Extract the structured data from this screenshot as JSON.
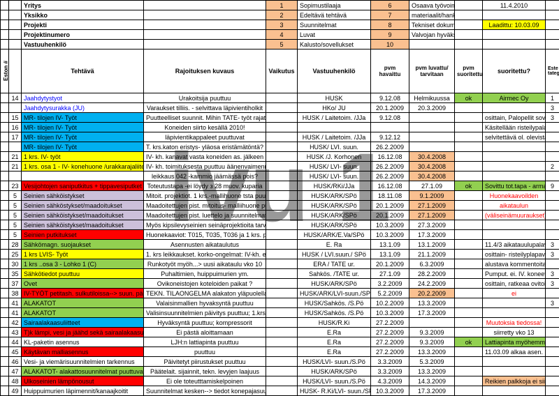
{
  "watermark": "ivu 1",
  "top": {
    "labels": [
      "Yritys",
      "Yksikko",
      "Projekti",
      "Projektinumero",
      "Vastuuhenkilö"
    ],
    "legend": [
      {
        "n": "1",
        "txt": "Sopimustilaaja",
        "bg": "#fac090"
      },
      {
        "n": "2",
        "txt": "Edeltävä tehtävä",
        "bg": "#fac090"
      },
      {
        "n": "3",
        "txt": "Suunnitelmat",
        "bg": "#fac090"
      },
      {
        "n": "4",
        "txt": "Luvat",
        "bg": "#fac090"
      },
      {
        "n": "5",
        "txt": "Kalusto/sovellukset",
        "bg": "#fac090"
      }
    ],
    "legend2": [
      {
        "n": "6",
        "txt": "Osaava työvoima",
        "bg": "#fac090"
      },
      {
        "n": "7",
        "txt": "materiaalit/hankinnat",
        "bg": "#fac090"
      },
      {
        "n": "8",
        "txt": "Tekniset dokumentit",
        "bg": "#fac090"
      },
      {
        "n": "9",
        "txt": "Valvojan hyväksyntä",
        "bg": "#fac090"
      },
      {
        "n": "10",
        "txt": "",
        "bg": "#fac090"
      }
    ],
    "date": "11.4.2010",
    "laadittu": "Laadittu:  10.03.09",
    "laadittu_bg": "#ffff00"
  },
  "headers": {
    "eston": "Eston #",
    "tehtava": "Tehtävä",
    "rajo": "Rajoituksen kuvaus",
    "vaik": "Vaikutus",
    "vastuu": "Vastuuhenkilö",
    "pvm1": "pvm havaittu",
    "pvm2": "pvm luvattu/ tarvitaan",
    "pvm3": "pvm suoritettu",
    "suor": "suoritettu?",
    "cat": "Este tategoria"
  },
  "colors": {
    "blue": "#00b0f0",
    "yellow": "#ffff00",
    "red": "#ff0000",
    "violet": "#ccc0da",
    "green": "#92d050",
    "pink": "#f4b183",
    "orange": "#fac090",
    "peach": "#ffcc99",
    "lightgreen": "#c4d79b"
  },
  "rows": [
    {
      "n": "14",
      "t": "Jaahdytystyot",
      "tc": "#0000ff",
      "r": "Urakoitsija puuttuu",
      "v": "HUSK",
      "p1": "9.12.08",
      "p2": "Helmikuussa",
      "ok": "ok",
      "s": "Airmec Oy",
      "sbg": "#92d050",
      "c": "1"
    },
    {
      "n": "",
      "t": "Jaahdytysurakka (JU)",
      "tc": "#0000ff",
      "r": "Varaukset tilliis. - selvittava läpivientiholkit",
      "v": "HKo/ JU",
      "p1": "20.1.2009",
      "p2": "20.3.2009",
      "ok": "",
      "s": "",
      "c": "3"
    },
    {
      "n": "15",
      "t": "MR- tilojen IV- Työt",
      "tbg": "#00b0f0",
      "r": "Puutteelliset suunnit. Mihin TATE- työt rajataan?",
      "v": "HUSK / Laitetoim. /JJa",
      "p1": "9.12.08",
      "p2": "",
      "ok": "",
      "s": "osittain, Palopellit sovittu",
      "c": "3"
    },
    {
      "n": "16",
      "t": "MR- tilojen IV- Työt",
      "tbg": "#00b0f0",
      "r": "Koneiden siirto kesällä 2010!",
      "v": "",
      "p1": "",
      "p2": "",
      "ok": "",
      "s": "Käsitellään risteilypalaverissa erikseen",
      "smerge": true,
      "c": ""
    },
    {
      "n": "17",
      "t": "MR- tilojen IV- Työt",
      "tbg": "#00b0f0",
      "r": "läpivientikappaleet puuttuvat",
      "v": "HUSK / Laitetoim. /JJa",
      "p1": "9.12.12",
      "p2": "",
      "ok": "",
      "s": "selvitettävä ol. olevista tiloisa",
      "c": ""
    },
    {
      "n": "",
      "t": "MR- tilojen IV- Työt",
      "tbg": "#00b0f0",
      "r": "T. krs.katon eristys- yläosa eristämätöntä?",
      "v": "HUSK/ LVI. suun.",
      "p1": "26.2.2009",
      "p2": "",
      "ok": "",
      "s": "",
      "c": ""
    },
    {
      "n": "21",
      "t": "1 krs. IV- työt",
      "tbg": "#ffff00",
      "r": "IV- kh. kanavat vasta koneiden as. jälkeen",
      "v": "HUSK /J. Korhonen",
      "p1": "16.12.08",
      "p2": "30.4.2008",
      "p2bg": "#fac090",
      "ok": "",
      "s": "",
      "c": ""
    },
    {
      "n": "21",
      "t": "1 krs. osa 1 - IV- konehuone /urakkarajaliite",
      "tbg": "#ffff00",
      "r": "IV- kh. toimituksesta puuttuu äänenvaimennin -",
      "v": "HUSK/ LVI- suun.",
      "p1": "26.2.2009",
      "p2": "30.4.2008",
      "p2bg": "#fac090",
      "ok": "",
      "s": "",
      "c": "2"
    },
    {
      "n": "",
      "t": "",
      "r": "leikkaus 042 -kammio jäämässä pois?",
      "v": "HUSK/ LVI- suun.",
      "p1": "26.2.2009",
      "p2": "30.4.2008",
      "p2bg": "#fac090",
      "ok": "",
      "s": "",
      "c": ""
    },
    {
      "n": "23",
      "t": "Vesijohtojen saniputkitus + tippavesiputket",
      "tbg": "#ff0000",
      "r": "Toteutustapa -ei löydy з 28 muov. kuparia",
      "v": "HUSK/RKi/JJa",
      "p1": "16.12.08",
      "p2": "27.1.09",
      "ok": "ok",
      "s": "Sovittu tot.tapa - armaflex",
      "sbg": "#92d050",
      "c": "9"
    },
    {
      "n": "5",
      "t": "Seinien sähköistykset",
      "tbg": "#ccc0da",
      "r": "Mitoit. projektiot. 1 krs.-mallihuone tsta puuttuu",
      "v": "HUSK/ARK/SPö",
      "p1": "18.11.08",
      "p2": "9.1.2009",
      "p2bg": "#fac090",
      "ok": "",
      "s": "Huonekaavoilden",
      "sfg": "#ff0000",
      "c": ""
    },
    {
      "n": "5",
      "t": "Seinien sähköstykset/maadoitukset",
      "tbg": "#ccc0da",
      "r": "Maadoitettujen pist. mitoitus- malliihuone puuttuu",
      "v": "HUSK/ARK/SPö",
      "p1": "20.1.2009",
      "p2": "27.1.2009",
      "p2bg": "#fac090",
      "ok": "",
      "s": "aikataulun",
      "sfg": "#ff0000",
      "c": ""
    },
    {
      "n": "5",
      "t": "Seinien sähköistykset/maadoitukset",
      "tbg": "#ccc0da",
      "r": "Maadoitettujen pist. luettelo ja suunnitelmat riitäriidassa",
      "v": "HUSK/ARK/SPö",
      "p1": "20.1.2009",
      "p2": "27.1.2009",
      "p2bg": "#fac090",
      "ok": "",
      "s": "(väliseinämuuraukset) mukaesti - os. myöhässä",
      "sfg": "#ff0000",
      "c": ""
    },
    {
      "n": "5",
      "t": "Seinien sähköistykset/maadoitukset",
      "tbg": "#ccc0da",
      "r": "Myös kipsilevyseinien seinäprojektioita tarvitaan",
      "v": "HUSK/ARK/SPö",
      "p1": "10.3.2009",
      "p2": "27.3.2009",
      "ok": "",
      "s": "",
      "c": ""
    },
    {
      "n": "5",
      "t": "Seinien putkitukset",
      "tbg": "#ff0000",
      "r": "Huonekaaviot: T015, T035, T036 ja 1 krs. puuttuvat",
      "v": "HUSK/ARK/E.Va/SPö",
      "p1": "10.3.2009",
      "p2": "17.3.2009",
      "ok": "",
      "s": "",
      "c": ""
    },
    {
      "n": "28",
      "t": "Sähkömagn. suojaukset",
      "tbg": "#92d050",
      "r": "Asennusten aikataulutus",
      "v": "E. Ra",
      "p1": "13.1.09",
      "p2": "13.1.2009",
      "ok": "",
      "s": "11.4/3 aikatauulupalaveri",
      "c": "3"
    },
    {
      "n": "25",
      "t": "1 krs LVIS- Työt",
      "tbg": "#ffff00",
      "r": "1. krs leikkaukset. korko-ongelmat: IV-kh. edusta ym.",
      "v": "HUSK / LVI.suun./ SPö",
      "p1": "13.1.09",
      "p2": "21.1.2009",
      "ok": "",
      "s": "osittain- risteilyplapaverit",
      "c": "3"
    },
    {
      "n": "30",
      "t": "1 krs ..osa 3 - Lohko 1 (C)",
      "tbg": "#92d050",
      "r": "Runkotyöt myöh...> uusi aikataulu vko 10",
      "v": "ERA / TATE ur.",
      "p1": "20.1.2009",
      "p2": "6.3.2009",
      "ok": "",
      "s": "alustava kommentoitavana",
      "c": ""
    },
    {
      "n": "35",
      "t": "Sähkötiedot puuttuu",
      "tbg": "#ffff00",
      "r": "Puhaltimien, huippuimurien ym.",
      "v": "Sahkös. /TATE ur.",
      "p1": "27.1.09",
      "p2": "28.2.2009",
      "ok": "",
      "s": "Pumput. ei. IV. koneet pääosin",
      "c": "3"
    },
    {
      "n": "37",
      "t": "Ovet",
      "tbg": "#92d050",
      "r": "Ovikoneistojen koteloiden paikat ?",
      "v": "HUSK/ARK/SPö",
      "p1": "3.2.2009",
      "p2": "24.2.2009",
      "ok": "",
      "s": "osittain, ratkeaa ovitoimit.",
      "c": "3"
    },
    {
      "n": "38",
      "t": "IV-TYÖT petitash. sulkutiloissa--> suun. päivitys",
      "tbg": "#ff0000",
      "r": "TEKN. TILAONGELMA alakaton yläpuolella",
      "v": "HUSK/ARK/LVI-suun./SPö",
      "p1": "5.2.2009",
      "p2": "20.2.2009",
      "p2bg": "#fac090",
      "ok": "",
      "s": "ei",
      "sfg": "#ff0000",
      "c": ""
    },
    {
      "n": "41",
      "t": "ALAKATOT",
      "tbg": "#92d050",
      "r": "Valaisinmallien hyvaksyntä puuttuu",
      "v": "HUSK/Sahkös. /S.Pö",
      "p1": "10.2.2009",
      "p2": "13.3.2009",
      "ok": "",
      "s": "",
      "c": "3"
    },
    {
      "n": "41",
      "t": "ALAKATOT",
      "tbg": "#92d050",
      "r": "Valisinsuunnitelmien päivitys puuttuu; 1.krs.",
      "v": "HUSK/Sahkös. /S.Pö",
      "p1": "10.3.2009",
      "p2": "17.3.2009",
      "ok": "",
      "s": "",
      "c": ""
    },
    {
      "n": "42",
      "t": "Sairaalakaasuliitteet",
      "tbg": "#00b0f0",
      "r": "Hyväksyntä puuttuu; kompressorit",
      "v": "HUSK/R.Ki",
      "p1": "27.2.2009",
      "p2": "",
      "ok": "",
      "s": "Muutoksia tiedossa!",
      "sfg": "#ff0000",
      "c": ""
    },
    {
      "n": "43",
      "t": "T)k lämpi, vesi ja jäähd sekä sairaalakaasujen putkist",
      "tbg": "#ff0000",
      "r": "Ei pästä aloittamaan",
      "v": "E.Ra",
      "p1": "27.2.2009",
      "p2": "9.3.2009",
      "ok": "",
      "s": "siirretty vko 13",
      "c": ""
    },
    {
      "n": "44",
      "t": "KL-paketin asennus",
      "r": "LJH:n lattiapinta puuttuu",
      "v": "E.Ra",
      "p1": "27.2.2009",
      "p2": "9.3.2009",
      "ok": "ok",
      "s": "Lattiapinta myöhemmin!",
      "sbg": "#92d050",
      "c": ""
    },
    {
      "n": "45",
      "t": "Käytävan malliasennus",
      "tbg": "#ff0000",
      "r": "puuttuu",
      "v": "E.Ra",
      "p1": "27.2.2009",
      "p2": "13.3.2009",
      "ok": "",
      "s": "11.03.09 alkaa asen.",
      "c": ""
    },
    {
      "n": "46",
      "t": "Vesi- ja viemärisuunnitelmien tarkennus",
      "r": "Päivitetyt piirustukset puuttuu",
      "v": "HUSK/LVI- suun./S.Pö",
      "p1": "3.3.2009",
      "p2": "5.3.2009",
      "ok": "",
      "s": "",
      "c": ""
    },
    {
      "n": "47",
      "t": "ALAKATOT- alakattosuunnitelmat puuttuvat",
      "tbg": "#92d050",
      "r": "Päätelait. sijainnit, tekn. levyjen laajuus",
      "v": "HUSK/ARK/SPö",
      "p1": "3.3.2009",
      "p2": "13.3.2009",
      "ok": "",
      "s": "",
      "c": ""
    },
    {
      "n": "48",
      "t": "Ulkoseinien lämpönousut",
      "tbg": "#ff0000",
      "r": "Ei ole toteutttamiskelpoinen",
      "v": "HUSK/LVI- suun./S.Pö",
      "p1": "4.3.2009",
      "p2": "14.3.2009",
      "ok": "",
      "s": "Reikien palkkoja ei siirretä",
      "sbg": "#fac090",
      "c": ""
    },
    {
      "n": "49",
      "t": "Huippuimurien läpimennit/kanaajkoitit",
      "r": "Suunnitelmat kesken--> tiedot konepajasuunnit. -jalle",
      "v": "HUSK- R.Ki/LVI- suun./SPö",
      "p1": "10.3.2009",
      "p2": "17.3.2009",
      "ok": "",
      "s": "",
      "c": ""
    }
  ]
}
